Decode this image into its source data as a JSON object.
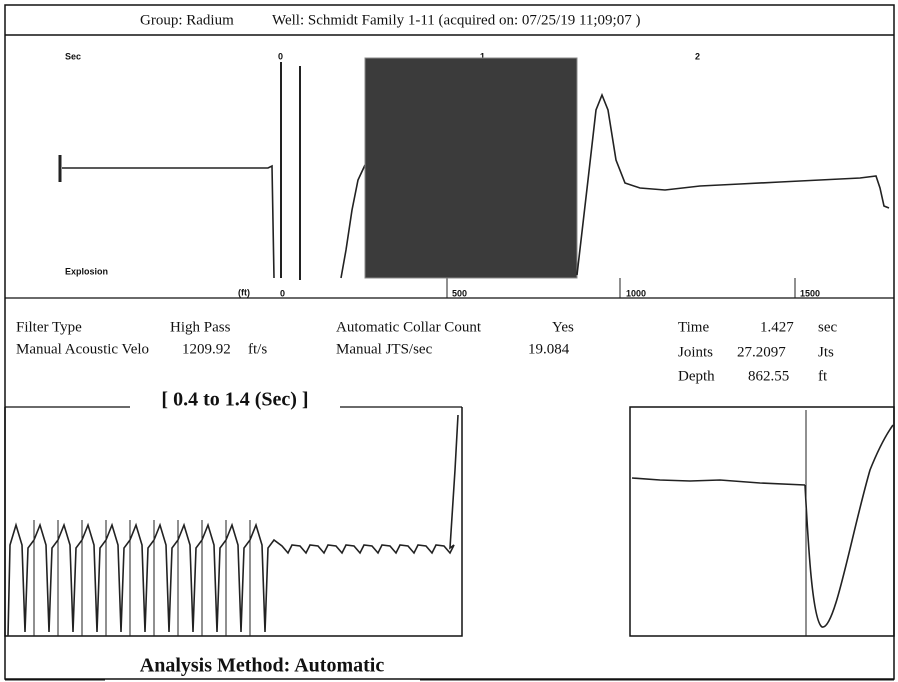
{
  "header": {
    "group": "Group: Radium",
    "well": "Well: Schmidt Family 1-11 (acquired on: 07/25/19 11;09;07 )"
  },
  "top_plot": {
    "sec_label": "Sec",
    "explosion_label": "Explosion",
    "ft_label": "(ft)",
    "time_ticks": [
      "0",
      "1",
      "2"
    ],
    "depth_ticks": [
      "0",
      "500",
      "1000",
      "1500"
    ]
  },
  "parameters": {
    "filter_type_label": "Filter Type",
    "filter_type_value": "High Pass",
    "collar_count_label": "Automatic Collar Count",
    "collar_count_value": "Yes",
    "velocity_label": "Manual Acoustic Velo",
    "velocity_value": "1209.92",
    "velocity_unit": "ft/s",
    "jts_label": "Manual JTS/sec",
    "jts_value": "19.084",
    "time_label": "Time",
    "time_value": "1.427",
    "time_unit": "sec",
    "joints_label": "Joints",
    "joints_value": "27.2097",
    "joints_unit": "Jts",
    "depth_label": "Depth",
    "depth_value": "862.55",
    "depth_unit": "ft"
  },
  "window_label": "[ 0.4  to  1.4 (Sec) ]",
  "footer": "Analysis Method:  Automatic"
}
